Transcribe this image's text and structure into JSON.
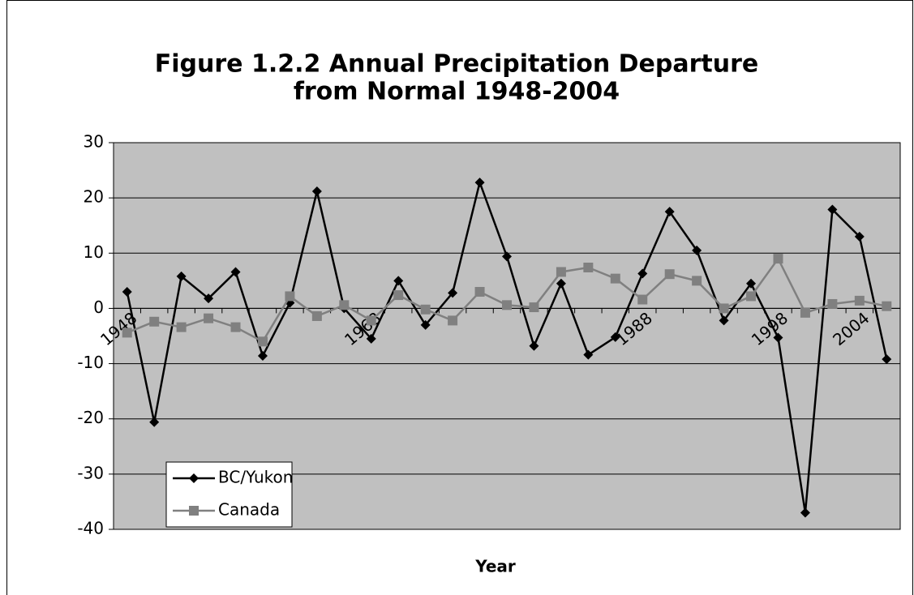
{
  "chart_data": {
    "type": "line",
    "title": [
      "Figure 1.2.2 Annual Precipitation Departure",
      "from Normal 1948-2004"
    ],
    "x_label": "Year",
    "categories": [
      "1948",
      null,
      null,
      null,
      null,
      null,
      null,
      null,
      null,
      "1968",
      null,
      null,
      null,
      null,
      null,
      null,
      null,
      null,
      null,
      "1988",
      null,
      null,
      null,
      null,
      "1998",
      null,
      null,
      "2004",
      null
    ],
    "series": [
      {
        "name": "BC/Yukon",
        "color": "#000000",
        "marker": "diamond",
        "values": [
          3,
          -20.6,
          5.8,
          1.8,
          6.6,
          -8.6,
          1,
          21.2,
          0,
          -5.5,
          5,
          -3,
          2.8,
          22.8,
          9.4,
          -6.8,
          4.5,
          -8.4,
          -5.2,
          6.3,
          17.5,
          10.5,
          -2.2,
          4.5,
          -5.3,
          -37,
          17.9,
          13,
          -9.2
        ]
      },
      {
        "name": "Canada",
        "color": "#808080",
        "marker": "square",
        "values": [
          -4.4,
          -2.4,
          -3.4,
          -1.8,
          -3.4,
          -6,
          2.2,
          -1.4,
          0.6,
          -2.2,
          2.4,
          -0.2,
          -2.2,
          3,
          0.6,
          0.2,
          6.6,
          7.4,
          5.4,
          1.6,
          6.2,
          5,
          0,
          2.2,
          9,
          -0.8,
          0.8,
          1.4,
          0.4
        ]
      }
    ],
    "ylim": [
      -40,
      30
    ],
    "yticks": [
      -40,
      -30,
      -20,
      -10,
      0,
      10,
      20,
      30
    ],
    "grid": true,
    "legend": "lower left"
  }
}
